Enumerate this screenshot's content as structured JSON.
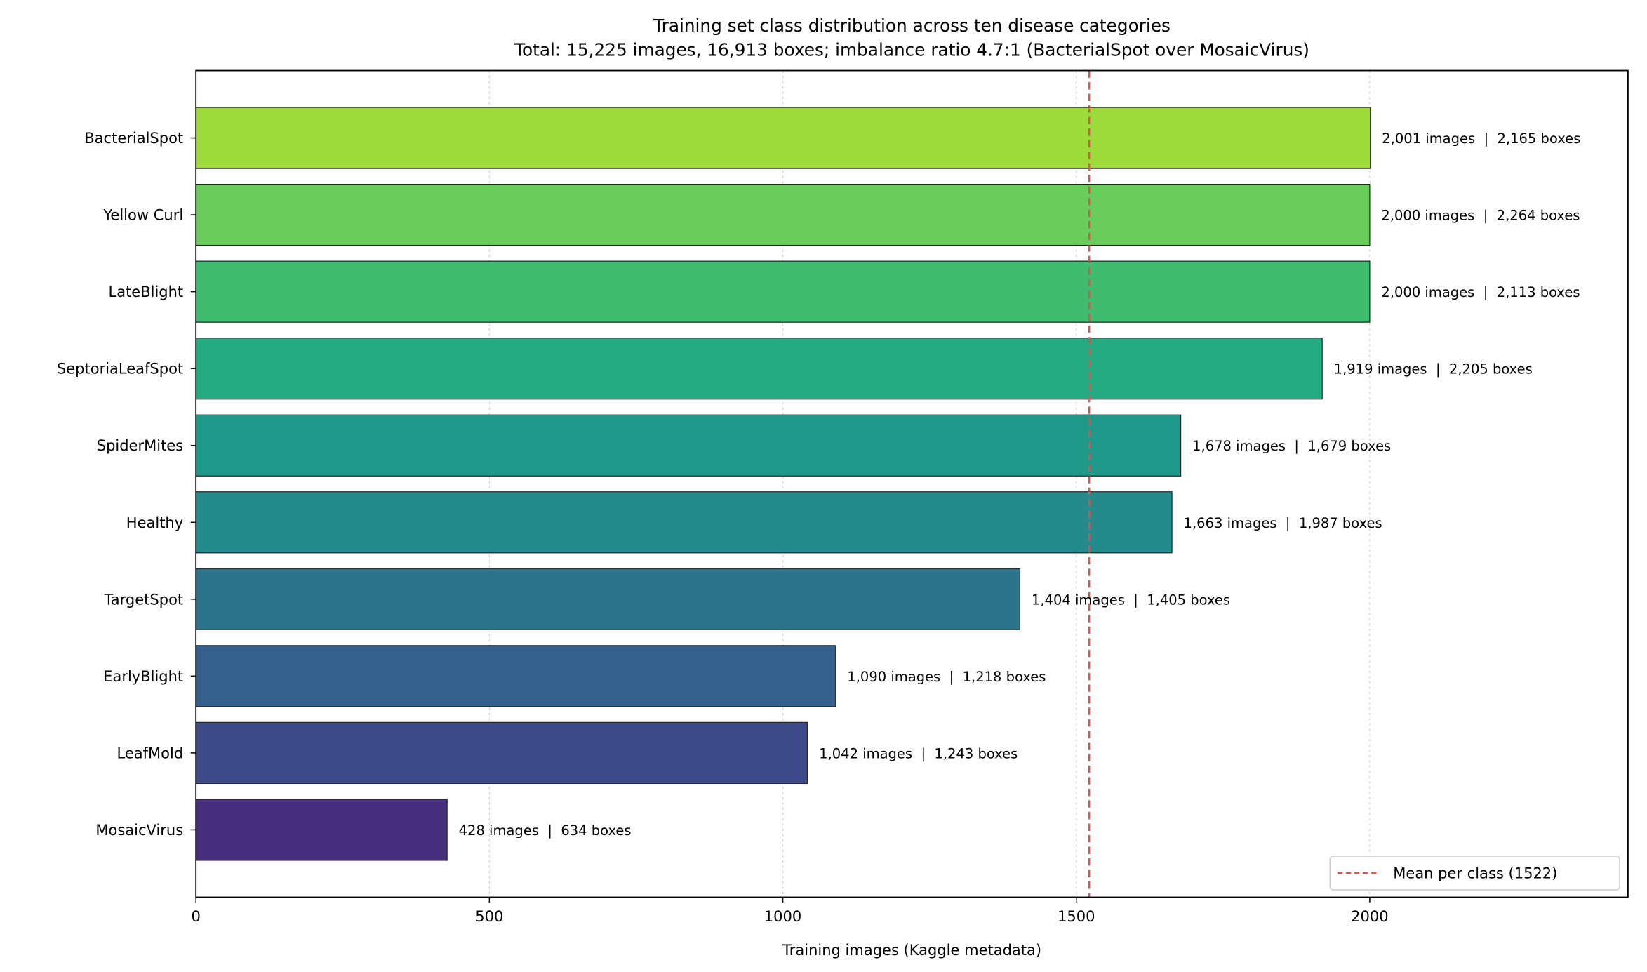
{
  "chart_data": {
    "type": "bar",
    "orientation": "horizontal",
    "title": "Training set class distribution across ten disease categories",
    "subtitle": "Total: 15,225 images, 16,913 boxes; imbalance ratio 4.7:1 (BacterialSpot over MosaicVirus)",
    "xlabel": "Training images (Kaggle metadata)",
    "ylabel": "",
    "xlim": [
      0,
      2440
    ],
    "xticks": [
      "0",
      "500",
      "1000",
      "1500",
      "2000"
    ],
    "grid": "x dotted",
    "categories": [
      "BacterialSpot",
      "Yellow Curl",
      "LateBlight",
      "SeptoriaLeafSpot",
      "SpiderMites",
      "Healthy",
      "TargetSpot",
      "EarlyBlight",
      "LeafMold",
      "MosaicVirus"
    ],
    "values": [
      2001,
      2000,
      2000,
      1919,
      1678,
      1663,
      1404,
      1090,
      1042,
      428
    ],
    "boxes": [
      2165,
      2264,
      2113,
      2205,
      1679,
      1987,
      1405,
      1218,
      1243,
      634
    ],
    "data_labels": [
      "2,001 images  |  2,165 boxes",
      "2,000 images  |  2,264 boxes",
      "2,000 images  |  2,113 boxes",
      "1,919 images  |  2,205 boxes",
      "1,678 images  |  1,679 boxes",
      "1,663 images  |  1,987 boxes",
      "1,404 images  |  1,405 boxes",
      "1,090 images  |  1,218 boxes",
      "1,042 images  |  1,243 boxes",
      "428 images  |  634 boxes"
    ],
    "colors": [
      "#9ddb3b",
      "#6acd5b",
      "#40bc71",
      "#25ab81",
      "#1f9a8a",
      "#248a8c",
      "#2b748c",
      "#35608d",
      "#3e4a89",
      "#472f7d"
    ],
    "mean_line": {
      "value": 1522,
      "color": "#d9534f",
      "style": "dashed"
    },
    "legend": {
      "entries": [
        "Mean per class (1522)"
      ],
      "placement": "lower-right"
    }
  }
}
